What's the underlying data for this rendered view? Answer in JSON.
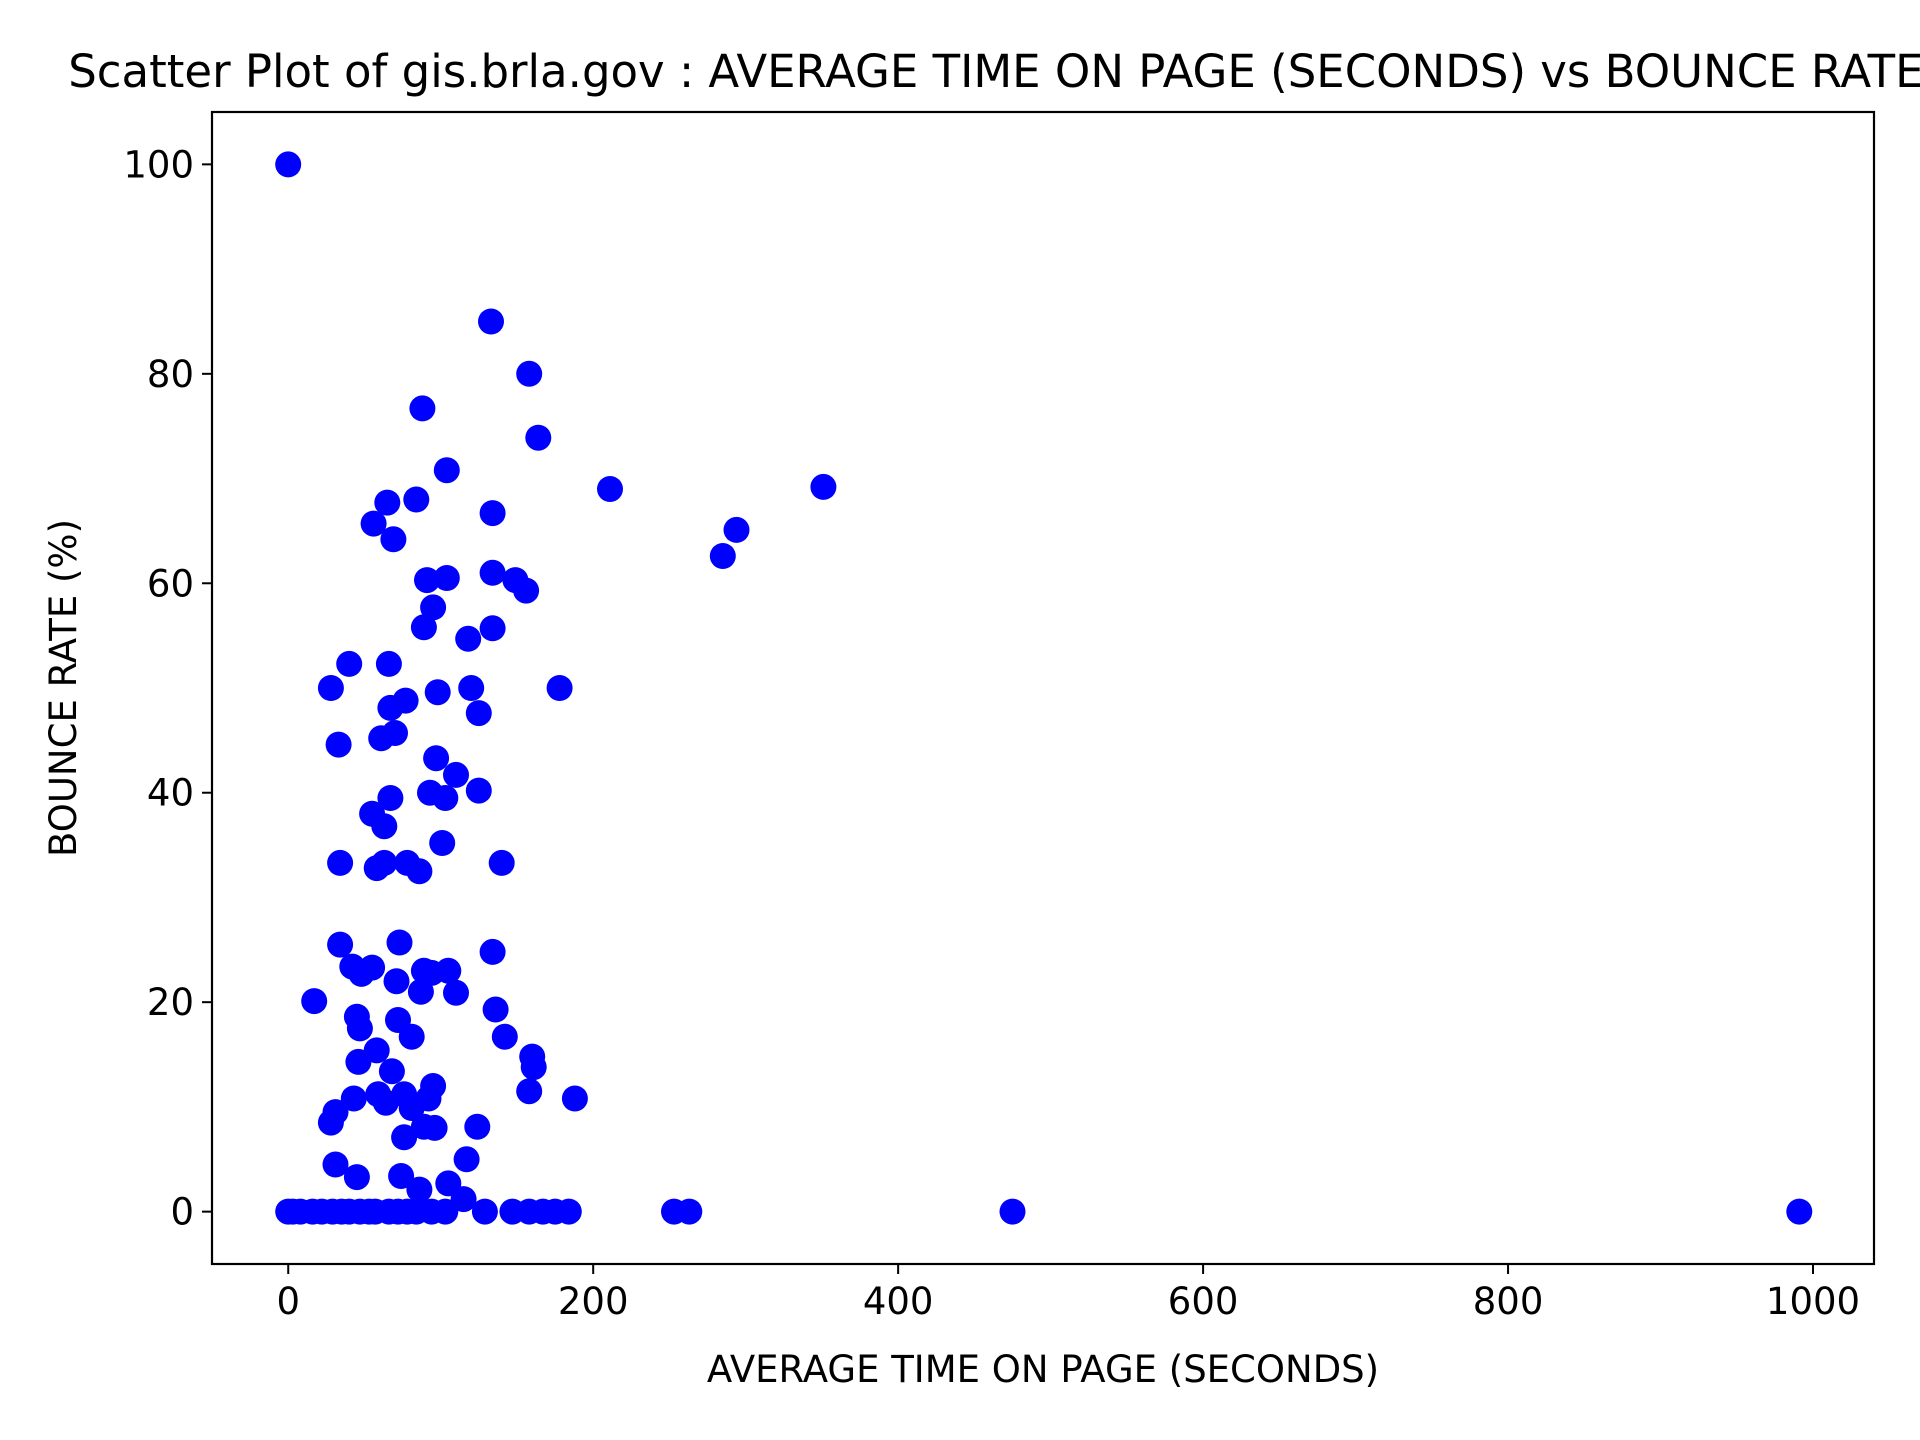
{
  "chart_data": {
    "type": "scatter",
    "title": "Scatter Plot of gis.brla.gov : AVERAGE TIME ON PAGE (SECONDS) vs BOUNCE RATE (%)",
    "xlabel": "AVERAGE TIME ON PAGE (SECONDS)",
    "ylabel": "BOUNCE RATE (%)",
    "xlim": [
      -50,
      1040
    ],
    "ylim": [
      -5,
      105
    ],
    "xticks": [
      0,
      200,
      400,
      600,
      800,
      1000
    ],
    "yticks": [
      0,
      20,
      40,
      60,
      80,
      100
    ],
    "grid": false,
    "legend": "none",
    "marker_color": "#0000ff",
    "x": [
      0,
      133,
      158,
      88,
      164,
      104,
      211,
      351,
      134,
      56,
      65,
      84,
      69,
      294,
      285,
      91,
      134,
      104,
      149,
      156,
      95,
      89,
      134,
      118,
      40,
      66,
      28,
      178,
      120,
      98,
      77,
      67,
      125,
      33,
      70,
      61,
      97,
      110,
      93,
      103,
      125,
      67,
      55,
      63,
      101,
      34,
      140,
      63,
      78,
      86,
      58,
      34,
      73,
      134,
      42,
      48,
      89,
      55,
      105,
      94,
      71,
      87,
      110,
      17,
      136,
      45,
      47,
      72,
      81,
      142,
      58,
      160,
      46,
      161,
      68,
      95,
      158,
      76,
      43,
      59,
      188,
      92,
      64,
      81,
      96,
      31,
      28,
      89,
      124,
      76,
      117,
      31,
      45,
      74,
      105,
      86,
      0,
      3,
      8,
      16,
      22,
      29,
      35,
      40,
      47,
      53,
      57,
      66,
      72,
      78,
      84,
      94,
      103,
      115,
      129,
      147,
      158,
      167,
      175,
      184,
      253,
      263,
      475,
      991
    ],
    "y": [
      100,
      85,
      80,
      76.7,
      73.9,
      70.8,
      69,
      69.2,
      66.7,
      65.7,
      67.7,
      68,
      64.2,
      65.1,
      62.6,
      60.3,
      61,
      60.5,
      60.3,
      59.3,
      57.7,
      55.8,
      55.7,
      54.7,
      52.3,
      52.3,
      50,
      50,
      50,
      49.6,
      48.8,
      48.1,
      47.6,
      44.6,
      45.7,
      45.2,
      43.3,
      41.7,
      40,
      39.5,
      40.2,
      39.5,
      38,
      36.8,
      35.2,
      33.3,
      33.3,
      33.3,
      33.3,
      32.5,
      32.8,
      25.5,
      25.7,
      24.8,
      23.4,
      22.7,
      23,
      23.3,
      23,
      22.8,
      22,
      21,
      20.9,
      20.1,
      19.3,
      18.6,
      17.5,
      18.3,
      16.7,
      16.7,
      15.4,
      14.8,
      14.3,
      13.8,
      13.4,
      12,
      11.5,
      11.2,
      10.8,
      11.2,
      10.8,
      10.8,
      10.4,
      9.9,
      8,
      9.5,
      8.5,
      8.1,
      8.1,
      7.1,
      5,
      4.5,
      3.3,
      3.4,
      2.7,
      2.1,
      0,
      0,
      0,
      0,
      0,
      0,
      0,
      0,
      0,
      0,
      0,
      0,
      0,
      0,
      0,
      0,
      0,
      1.2,
      0,
      0,
      0,
      0,
      0,
      0,
      0,
      0,
      0,
      0
    ]
  }
}
